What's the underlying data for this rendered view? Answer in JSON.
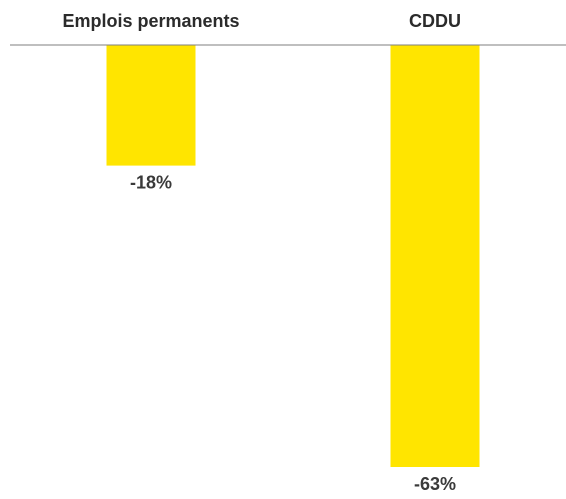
{
  "chart_data": {
    "type": "bar",
    "categories": [
      "Emplois permanents",
      "CDDU"
    ],
    "values": [
      -18,
      -63
    ],
    "value_labels": [
      "-18%",
      "-63%"
    ],
    "unit": "%",
    "ylim": [
      -63,
      0
    ],
    "grid": false,
    "legend": "none",
    "category_axis_position": "top",
    "bar_color": "#FFE500",
    "axis_color": "#7f7f7f"
  }
}
